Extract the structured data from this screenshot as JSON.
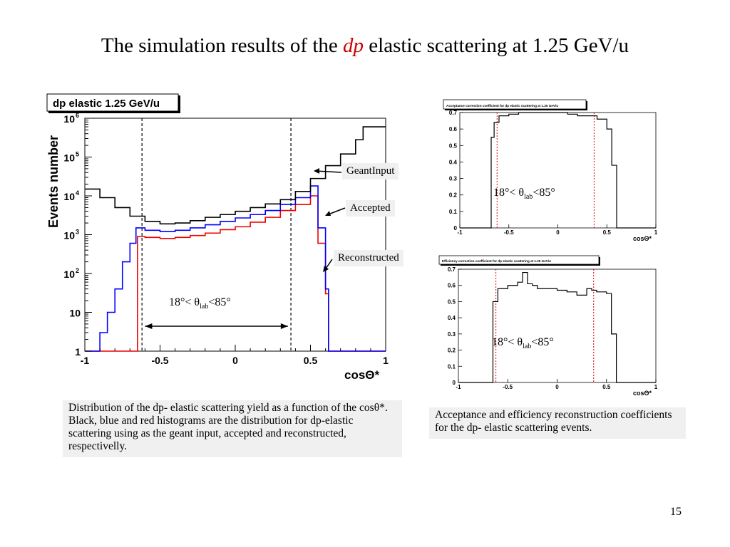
{
  "slide": {
    "title_pre": "The simulation results of the ",
    "title_em": "dp",
    "title_post": " elastic scattering at 1.25 GeV/u",
    "page_number": "15"
  },
  "main_plot": {
    "title_box": "dp elastic 1.25 GeV/u",
    "ylabel": "Events number",
    "xlabel": "cosΘ*",
    "x_ticks": [
      "-1",
      "-0.5",
      "0",
      "0.5",
      "1"
    ],
    "y_ticks": [
      {
        "base": "1",
        "exp": ""
      },
      {
        "base": "10",
        "exp": ""
      },
      {
        "base": "10",
        "exp": "2"
      },
      {
        "base": "10",
        "exp": "3"
      },
      {
        "base": "10",
        "exp": "4"
      },
      {
        "base": "10",
        "exp": "5"
      },
      {
        "base": "10",
        "exp": "6"
      }
    ],
    "callout_geant": "GeantInput",
    "callout_accepted": "Accepted",
    "callout_reconstructed": "Reconstructed",
    "range_pre": "18°< θ",
    "range_sub": "lab",
    "range_post": "<85°"
  },
  "acc_plot": {
    "title_box": "Acceptance correction coefficient for dp elastic scattering at 1.25 GeV/u",
    "xlabel": "cosΘ*",
    "x_ticks": [
      "-1",
      "-0.5",
      "0",
      "0.5",
      "1"
    ],
    "y_ticks": [
      "0",
      "0.1",
      "0.2",
      "0.3",
      "0.4",
      "0.5",
      "0.6",
      "0.7"
    ],
    "range_pre": "18°< θ",
    "range_sub": "lab",
    "range_post": "<85°"
  },
  "eff_plot": {
    "title_box": "Efficiency correction coefficient for dp elastic scattering at 1.25 GeV/u",
    "xlabel": "cosΘ*",
    "x_ticks": [
      "-1",
      "-0.5",
      "0",
      "0.5",
      "1"
    ],
    "y_ticks": [
      "0",
      "0.1",
      "0.2",
      "0.3",
      "0.4",
      "0.5",
      "0.6",
      "0.7"
    ],
    "range_pre": "18°< θ",
    "range_sub": "lab",
    "range_post": "<85°"
  },
  "captions": {
    "left": "Distribution of the dp- elastic scattering yield as a function of the cosθ*. Black, blue and red histograms are the distribution for dp-elastic scattering using as the geant input, accepted and reconstructed, respectivelly.",
    "right": "Acceptance and efficiency reconstruction coefficients for the dp- elastic scattering events."
  },
  "colors": {
    "geant": "#000000",
    "accepted": "#0000ff",
    "reconstructed": "#ee0000",
    "title_accent": "#cc0000",
    "caption_bg": "#f0f0f0"
  },
  "chart_data": [
    {
      "type": "histogram",
      "title": "dp elastic 1.25 GeV/u",
      "xlabel": "cosΘ*",
      "ylabel": "Events number",
      "xlim": [
        -1,
        1
      ],
      "ylim": [
        1,
        1000000
      ],
      "yscale": "log",
      "grid": false,
      "vertical_dashed_lines": [
        -0.62,
        0.37
      ],
      "series": [
        {
          "name": "GeantInput",
          "color": "#000000",
          "x": [
            -1,
            -0.9,
            -0.8,
            -0.7,
            -0.6,
            -0.5,
            -0.4,
            -0.3,
            -0.2,
            -0.1,
            0,
            0.1,
            0.2,
            0.3,
            0.4,
            0.5,
            0.6,
            0.7,
            0.8,
            0.85,
            0.9,
            1
          ],
          "y": [
            15000,
            9000,
            5000,
            3000,
            2200,
            1900,
            2000,
            2300,
            2800,
            3300,
            4000,
            5000,
            6200,
            8000,
            13000,
            28000,
            60000,
            120000,
            280000,
            600000,
            600000,
            600000
          ]
        },
        {
          "name": "Accepted",
          "color": "#0000ff",
          "x": [
            -1,
            -0.9,
            -0.85,
            -0.8,
            -0.75,
            -0.7,
            -0.66,
            -0.6,
            -0.5,
            -0.4,
            -0.3,
            -0.2,
            -0.1,
            0,
            0.1,
            0.2,
            0.3,
            0.4,
            0.5,
            0.55,
            0.6,
            0.62,
            1
          ],
          "y": [
            1,
            3,
            10,
            40,
            200,
            600,
            1500,
            1300,
            1200,
            1300,
            1500,
            1800,
            2200,
            2700,
            3300,
            4200,
            6000,
            9000,
            18000,
            1500,
            40,
            1,
            1
          ]
        },
        {
          "name": "Reconstructed",
          "color": "#ee0000",
          "x": [
            -1,
            -0.68,
            -0.65,
            -0.6,
            -0.5,
            -0.4,
            -0.3,
            -0.2,
            -0.1,
            0,
            0.1,
            0.2,
            0.3,
            0.4,
            0.5,
            0.55,
            0.6,
            0.62,
            1
          ],
          "y": [
            1,
            1,
            900,
            850,
            800,
            850,
            950,
            1100,
            1350,
            1600,
            2100,
            2800,
            4200,
            6000,
            10000,
            600,
            30,
            1,
            1
          ]
        }
      ],
      "annotations": [
        "GeantInput",
        "Accepted",
        "Reconstructed",
        "18°< θlab<85°"
      ]
    },
    {
      "type": "histogram",
      "title": "Acceptance correction coefficient for dp elastic scattering at 1.25 GeV/u",
      "xlabel": "cosΘ*",
      "xlim": [
        -1,
        1
      ],
      "ylim": [
        0,
        0.7
      ],
      "vertical_dashed_lines": [
        -0.62,
        0.37
      ],
      "series": [
        {
          "name": "",
          "color": "#000000",
          "x": [
            -1,
            -0.72,
            -0.68,
            -0.65,
            -0.6,
            -0.5,
            -0.4,
            -0.3,
            -0.2,
            -0.1,
            0,
            0.1,
            0.2,
            0.3,
            0.4,
            0.5,
            0.55,
            0.6,
            1
          ],
          "y": [
            0,
            0,
            0.55,
            0.64,
            0.68,
            0.69,
            0.7,
            0.7,
            0.7,
            0.7,
            0.7,
            0.69,
            0.68,
            0.68,
            0.66,
            0.6,
            0.38,
            0,
            0
          ]
        }
      ],
      "annotations": [
        "18°< θlab<85°"
      ]
    },
    {
      "type": "histogram",
      "title": "Efficiency correction coefficient for dp elastic scattering at 1.25 GeV/u",
      "xlabel": "cosΘ*",
      "xlim": [
        -1,
        1
      ],
      "ylim": [
        0,
        0.7
      ],
      "vertical_dashed_lines": [
        -0.62,
        0.37
      ],
      "series": [
        {
          "name": "",
          "color": "#000000",
          "x": [
            -1,
            -0.68,
            -0.65,
            -0.6,
            -0.5,
            -0.4,
            -0.35,
            -0.3,
            -0.25,
            -0.2,
            -0.1,
            0,
            0.1,
            0.2,
            0.3,
            0.35,
            0.4,
            0.5,
            0.55,
            0.6,
            1
          ],
          "y": [
            0,
            0,
            0.5,
            0.58,
            0.6,
            0.62,
            0.68,
            0.61,
            0.6,
            0.58,
            0.58,
            0.57,
            0.56,
            0.54,
            0.58,
            0.57,
            0.56,
            0.55,
            0.3,
            0,
            0
          ]
        }
      ],
      "annotations": [
        "18°< θlab<85°"
      ]
    }
  ]
}
